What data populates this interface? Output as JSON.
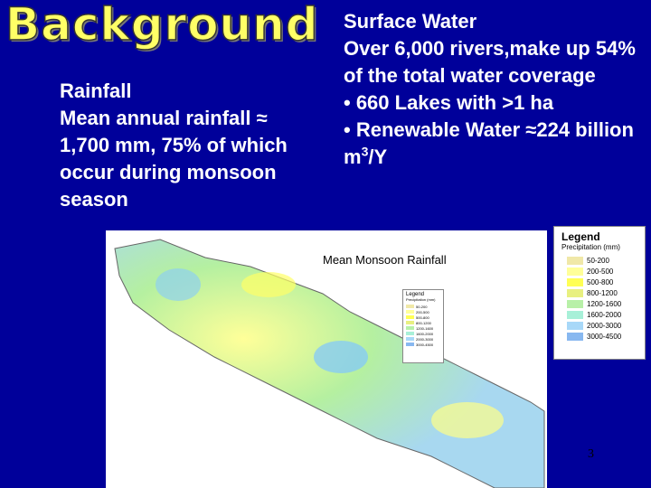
{
  "title": "Background",
  "left": {
    "heading": "Rainfall",
    "body": "Mean annual rainfall ≈ 1,700 mm, 75% of which occur during monsoon season"
  },
  "right": {
    "heading": "Surface Water",
    "paragraph": "Over 6,000 rivers,make up 54% of the total water coverage",
    "bullet_1": "• 660 Lakes with >1 ha",
    "bullet_2": {
      "text": "• Renewable Water ≈224 billion m",
      "sup": "3",
      "tail": "/Y"
    }
  },
  "map": {
    "caption": "Mean Monsoon Rainfall"
  },
  "legend": {
    "title": "Legend",
    "subtitle": "Precipitation (mm)",
    "entries": [
      "50-200",
      "200-500",
      "500-800",
      "800-1200",
      "1200-1600",
      "1600-2000",
      "2000-3000",
      "3000-4500"
    ]
  },
  "page_number": "3"
}
